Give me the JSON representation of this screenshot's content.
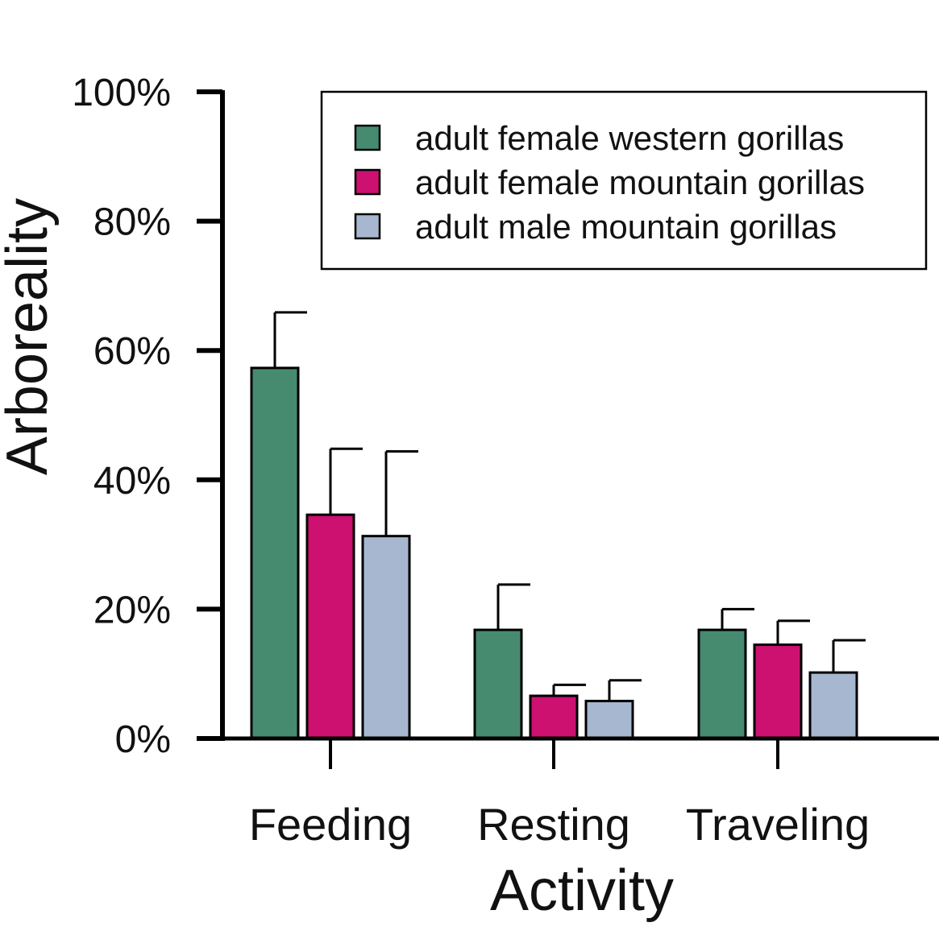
{
  "chart_data": {
    "type": "bar",
    "title": "",
    "xlabel": "Activity",
    "ylabel": "Arboreality",
    "ylim": [
      0,
      100
    ],
    "yticks": [
      0,
      20,
      40,
      60,
      80,
      100
    ],
    "ytick_labels": [
      "0%",
      "20%",
      "40%",
      "60%",
      "80%",
      "100%"
    ],
    "categories": [
      "Feeding",
      "Resting",
      "Traveling"
    ],
    "series": [
      {
        "name": "adult female western gorillas",
        "color": "#468a70",
        "values": [
          57.3,
          16.8,
          16.8
        ],
        "error": [
          8.6,
          7.0,
          3.2
        ]
      },
      {
        "name": "adult female mountain gorillas",
        "color": "#cc1170",
        "values": [
          34.6,
          6.6,
          14.5
        ],
        "error": [
          10.2,
          1.7,
          3.7
        ]
      },
      {
        "name": "adult male mountain gorillas",
        "color": "#a6b7cf",
        "values": [
          31.3,
          5.8,
          10.2
        ],
        "error": [
          13.1,
          3.2,
          5.0
        ]
      }
    ],
    "grid": false,
    "legend_position": "top-right"
  }
}
